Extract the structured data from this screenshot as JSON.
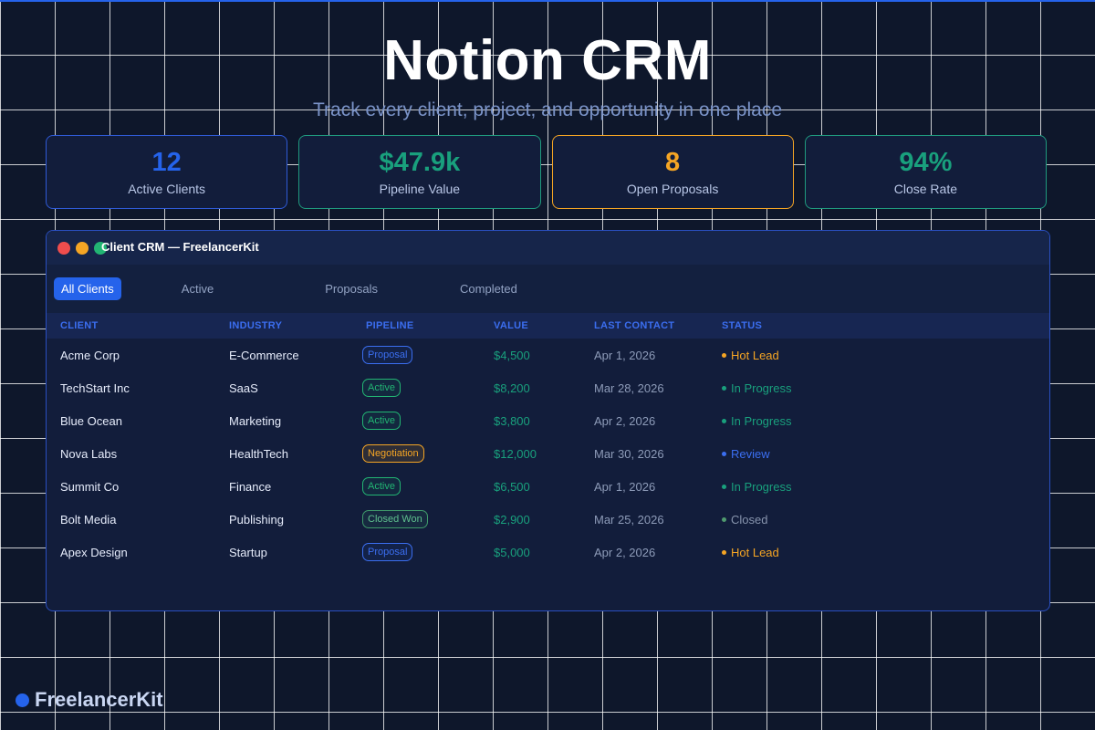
{
  "hero": {
    "title": "Notion CRM",
    "subtitle": "Track every client, project, and opportunity in one place"
  },
  "stats": [
    {
      "value": "12",
      "label": "Active Clients",
      "color": "#2563eb"
    },
    {
      "value": "$47.9k",
      "label": "Pipeline Value",
      "color": "#19a07d"
    },
    {
      "value": "8",
      "label": "Open Proposals",
      "color": "#f5a524"
    },
    {
      "value": "94%",
      "label": "Close Rate",
      "color": "#19a07d"
    }
  ],
  "window": {
    "title": "Client CRM — FreelancerKit",
    "tabs": [
      "All Clients",
      "Active",
      "Proposals",
      "Completed"
    ],
    "columns": [
      "CLIENT",
      "INDUSTRY",
      "PIPELINE",
      "VALUE",
      "LAST CONTACT",
      "STATUS"
    ],
    "rows": [
      {
        "client": "Acme Corp",
        "industry": "E-Commerce",
        "pipeline": "Proposal",
        "value": "$4,500",
        "last_contact": "Apr 1, 2026",
        "status": "Hot Lead"
      },
      {
        "client": "TechStart Inc",
        "industry": "SaaS",
        "pipeline": "Active",
        "value": "$8,200",
        "last_contact": "Mar 28, 2026",
        "status": "In Progress"
      },
      {
        "client": "Blue Ocean",
        "industry": "Marketing",
        "pipeline": "Active",
        "value": "$3,800",
        "last_contact": "Apr 2, 2026",
        "status": "In Progress"
      },
      {
        "client": "Nova Labs",
        "industry": "HealthTech",
        "pipeline": "Negotiation",
        "value": "$12,000",
        "last_contact": "Mar 30, 2026",
        "status": "Review"
      },
      {
        "client": "Summit Co",
        "industry": "Finance",
        "pipeline": "Active",
        "value": "$6,500",
        "last_contact": "Apr 1, 2026",
        "status": "In Progress"
      },
      {
        "client": "Bolt Media",
        "industry": "Publishing",
        "pipeline": "Closed Won",
        "value": "$2,900",
        "last_contact": "Mar 25, 2026",
        "status": "Closed"
      },
      {
        "client": "Apex Design",
        "industry": "Startup",
        "pipeline": "Proposal",
        "value": "$5,000",
        "last_contact": "Apr 2, 2026",
        "status": "Hot Lead"
      }
    ]
  },
  "brand": {
    "name": "FreelancerKit"
  },
  "colors": {
    "accent": "#2563eb",
    "green": "#19a07d",
    "orange": "#f5a524",
    "background": "#0e172b"
  }
}
